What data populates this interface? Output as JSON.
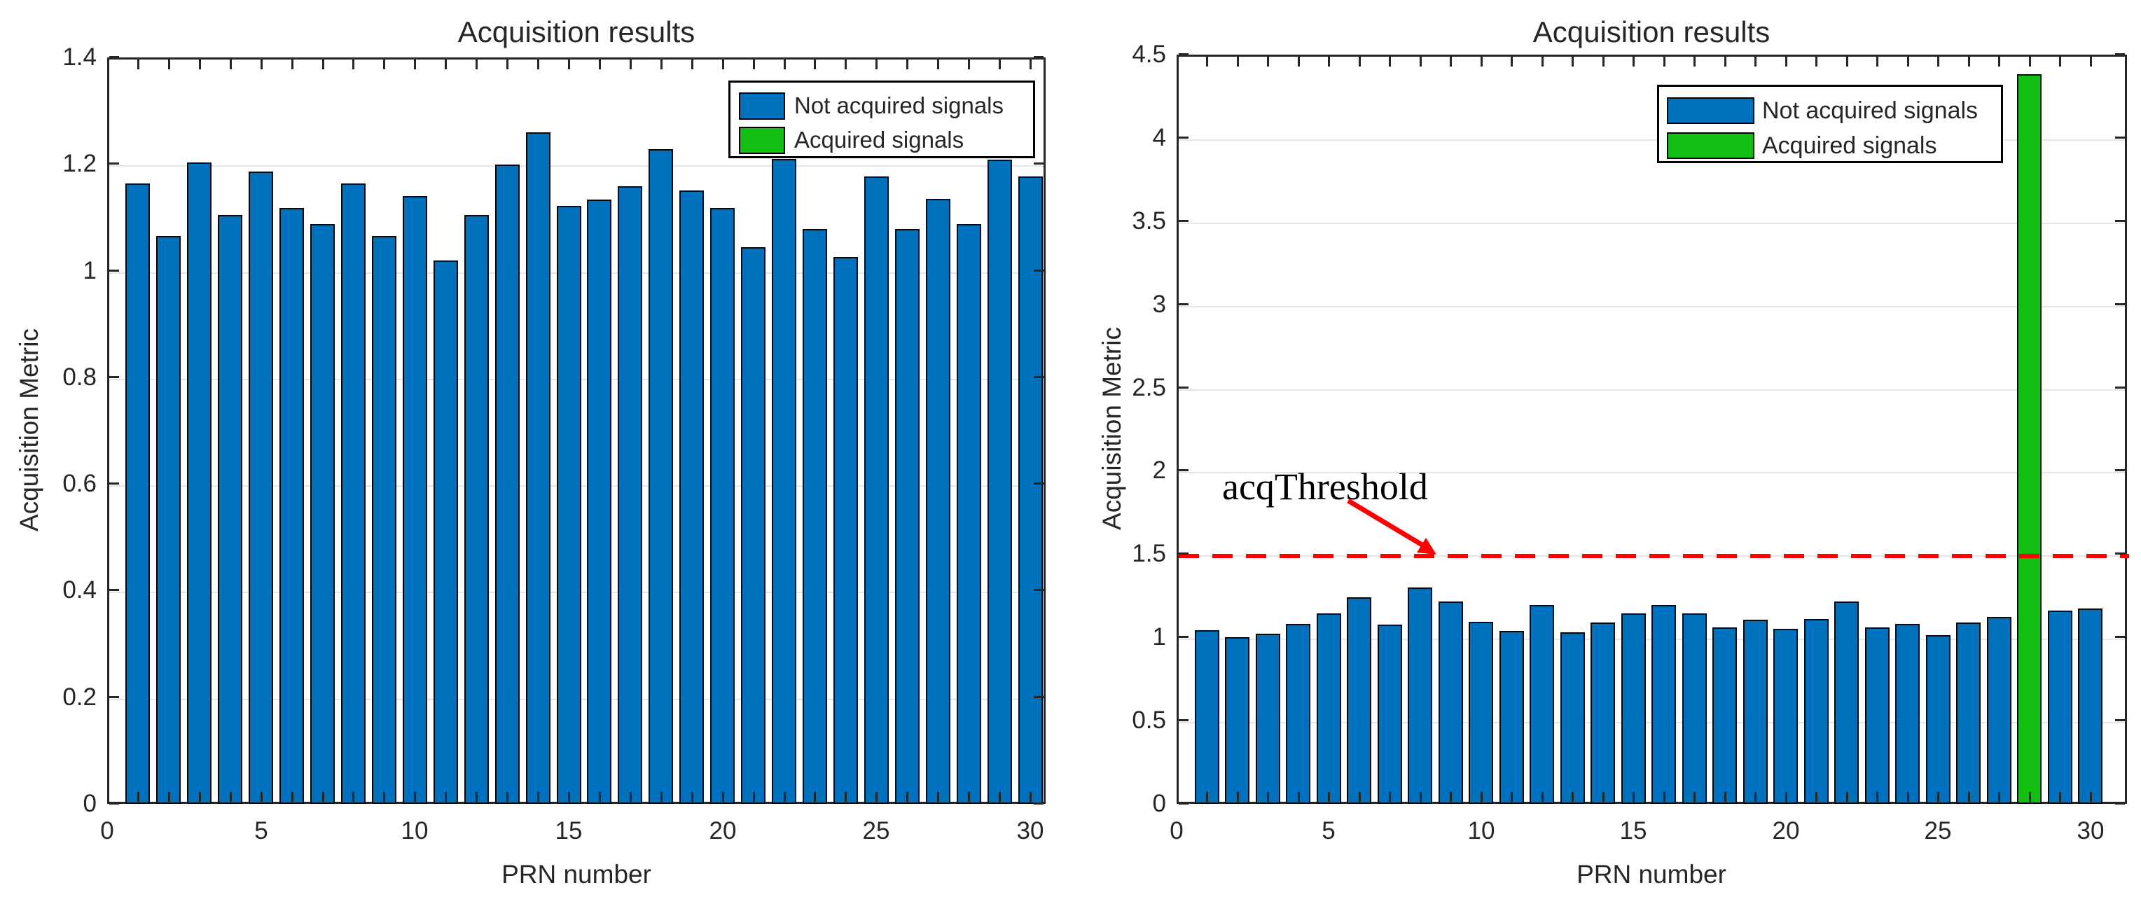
{
  "figure": {
    "background": "#ffffff"
  },
  "colors": {
    "bar_blue": "#0072bd",
    "bar_green": "#12be12",
    "bar_edge": "#000a14",
    "grid": "#e6e6e6",
    "axis": "#262626",
    "text": "#262626",
    "threshold_red": "#ff0000",
    "legend_bg": "#ffffff",
    "legend_border": "#000000"
  },
  "chart_data": [
    {
      "type": "bar",
      "title": "Acquisition results",
      "xlabel": "PRN number",
      "ylabel": "Acquisition Metric",
      "ylim": [
        0,
        1.4
      ],
      "xlim": [
        0,
        30.5
      ],
      "grid": "horizontal",
      "legend_position": "top-right-inside",
      "yticks": [
        {
          "v": 0,
          "label": "0"
        },
        {
          "v": 0.2,
          "label": "0.2"
        },
        {
          "v": 0.4,
          "label": "0.4"
        },
        {
          "v": 0.6,
          "label": "0.6"
        },
        {
          "v": 0.8,
          "label": "0.8"
        },
        {
          "v": 1,
          "label": "1"
        },
        {
          "v": 1.2,
          "label": "1.2"
        },
        {
          "v": 1.4,
          "label": "1.4"
        }
      ],
      "xticks": [
        {
          "v": 0,
          "label": "0"
        },
        {
          "v": 5,
          "label": "5"
        },
        {
          "v": 10,
          "label": "10"
        },
        {
          "v": 15,
          "label": "15"
        },
        {
          "v": 20,
          "label": "20"
        },
        {
          "v": 25,
          "label": "25"
        },
        {
          "v": 30,
          "label": "30"
        }
      ],
      "categories": [
        1,
        2,
        3,
        4,
        5,
        6,
        7,
        8,
        9,
        10,
        11,
        12,
        13,
        14,
        15,
        16,
        17,
        18,
        19,
        20,
        21,
        22,
        23,
        24,
        25,
        26,
        27,
        28,
        29,
        30
      ],
      "values": [
        1.163,
        1.065,
        1.203,
        1.105,
        1.186,
        1.117,
        1.088,
        1.163,
        1.065,
        1.14,
        1.019,
        1.104,
        1.199,
        1.259,
        1.121,
        1.134,
        1.158,
        1.228,
        1.15,
        1.117,
        1.044,
        1.209,
        1.078,
        1.026,
        1.177,
        1.078,
        1.135,
        1.088,
        1.208,
        1.177
      ],
      "acquired_prns": [],
      "legend": {
        "items": [
          {
            "label": "Not acquired signals",
            "swatch": "#0072bd"
          },
          {
            "label": "Acquired signals",
            "swatch": "#12be12"
          }
        ]
      }
    },
    {
      "type": "bar",
      "title": "Acquisition results",
      "xlabel": "PRN number",
      "ylabel": "Acquisition Metric",
      "ylim": [
        0,
        4.5
      ],
      "xlim": [
        0,
        31.2
      ],
      "grid": "horizontal",
      "legend_position": "top-right-inside",
      "yticks": [
        {
          "v": 0,
          "label": "0"
        },
        {
          "v": 0.5,
          "label": "0.5"
        },
        {
          "v": 1,
          "label": "1"
        },
        {
          "v": 1.5,
          "label": "1.5"
        },
        {
          "v": 2,
          "label": "2"
        },
        {
          "v": 2.5,
          "label": "2.5"
        },
        {
          "v": 3,
          "label": "3"
        },
        {
          "v": 3.5,
          "label": "3.5"
        },
        {
          "v": 4,
          "label": "4"
        },
        {
          "v": 4.5,
          "label": "4.5"
        }
      ],
      "xticks": [
        {
          "v": 0,
          "label": "0"
        },
        {
          "v": 5,
          "label": "5"
        },
        {
          "v": 10,
          "label": "10"
        },
        {
          "v": 15,
          "label": "15"
        },
        {
          "v": 20,
          "label": "20"
        },
        {
          "v": 25,
          "label": "25"
        },
        {
          "v": 30,
          "label": "30"
        }
      ],
      "categories": [
        1,
        2,
        3,
        4,
        5,
        6,
        7,
        8,
        9,
        10,
        11,
        12,
        13,
        14,
        15,
        16,
        17,
        18,
        19,
        20,
        21,
        22,
        23,
        24,
        25,
        26,
        27,
        28,
        29,
        30
      ],
      "values": [
        1.042,
        1.0,
        1.021,
        1.081,
        1.144,
        1.241,
        1.077,
        1.3,
        1.216,
        1.095,
        1.038,
        1.195,
        1.031,
        1.088,
        1.144,
        1.195,
        1.144,
        1.06,
        1.105,
        1.05,
        1.11,
        1.216,
        1.06,
        1.081,
        1.015,
        1.088,
        1.123,
        4.381,
        1.16,
        1.174
      ],
      "acquired_prns": [
        28
      ],
      "threshold": {
        "value": 1.5,
        "label": "acqThreshold",
        "color": "#ff0000",
        "style": "dashed"
      },
      "legend": {
        "items": [
          {
            "label": "Not acquired signals",
            "swatch": "#0072bd"
          },
          {
            "label": "Acquired signals",
            "swatch": "#12be12"
          }
        ]
      }
    }
  ]
}
